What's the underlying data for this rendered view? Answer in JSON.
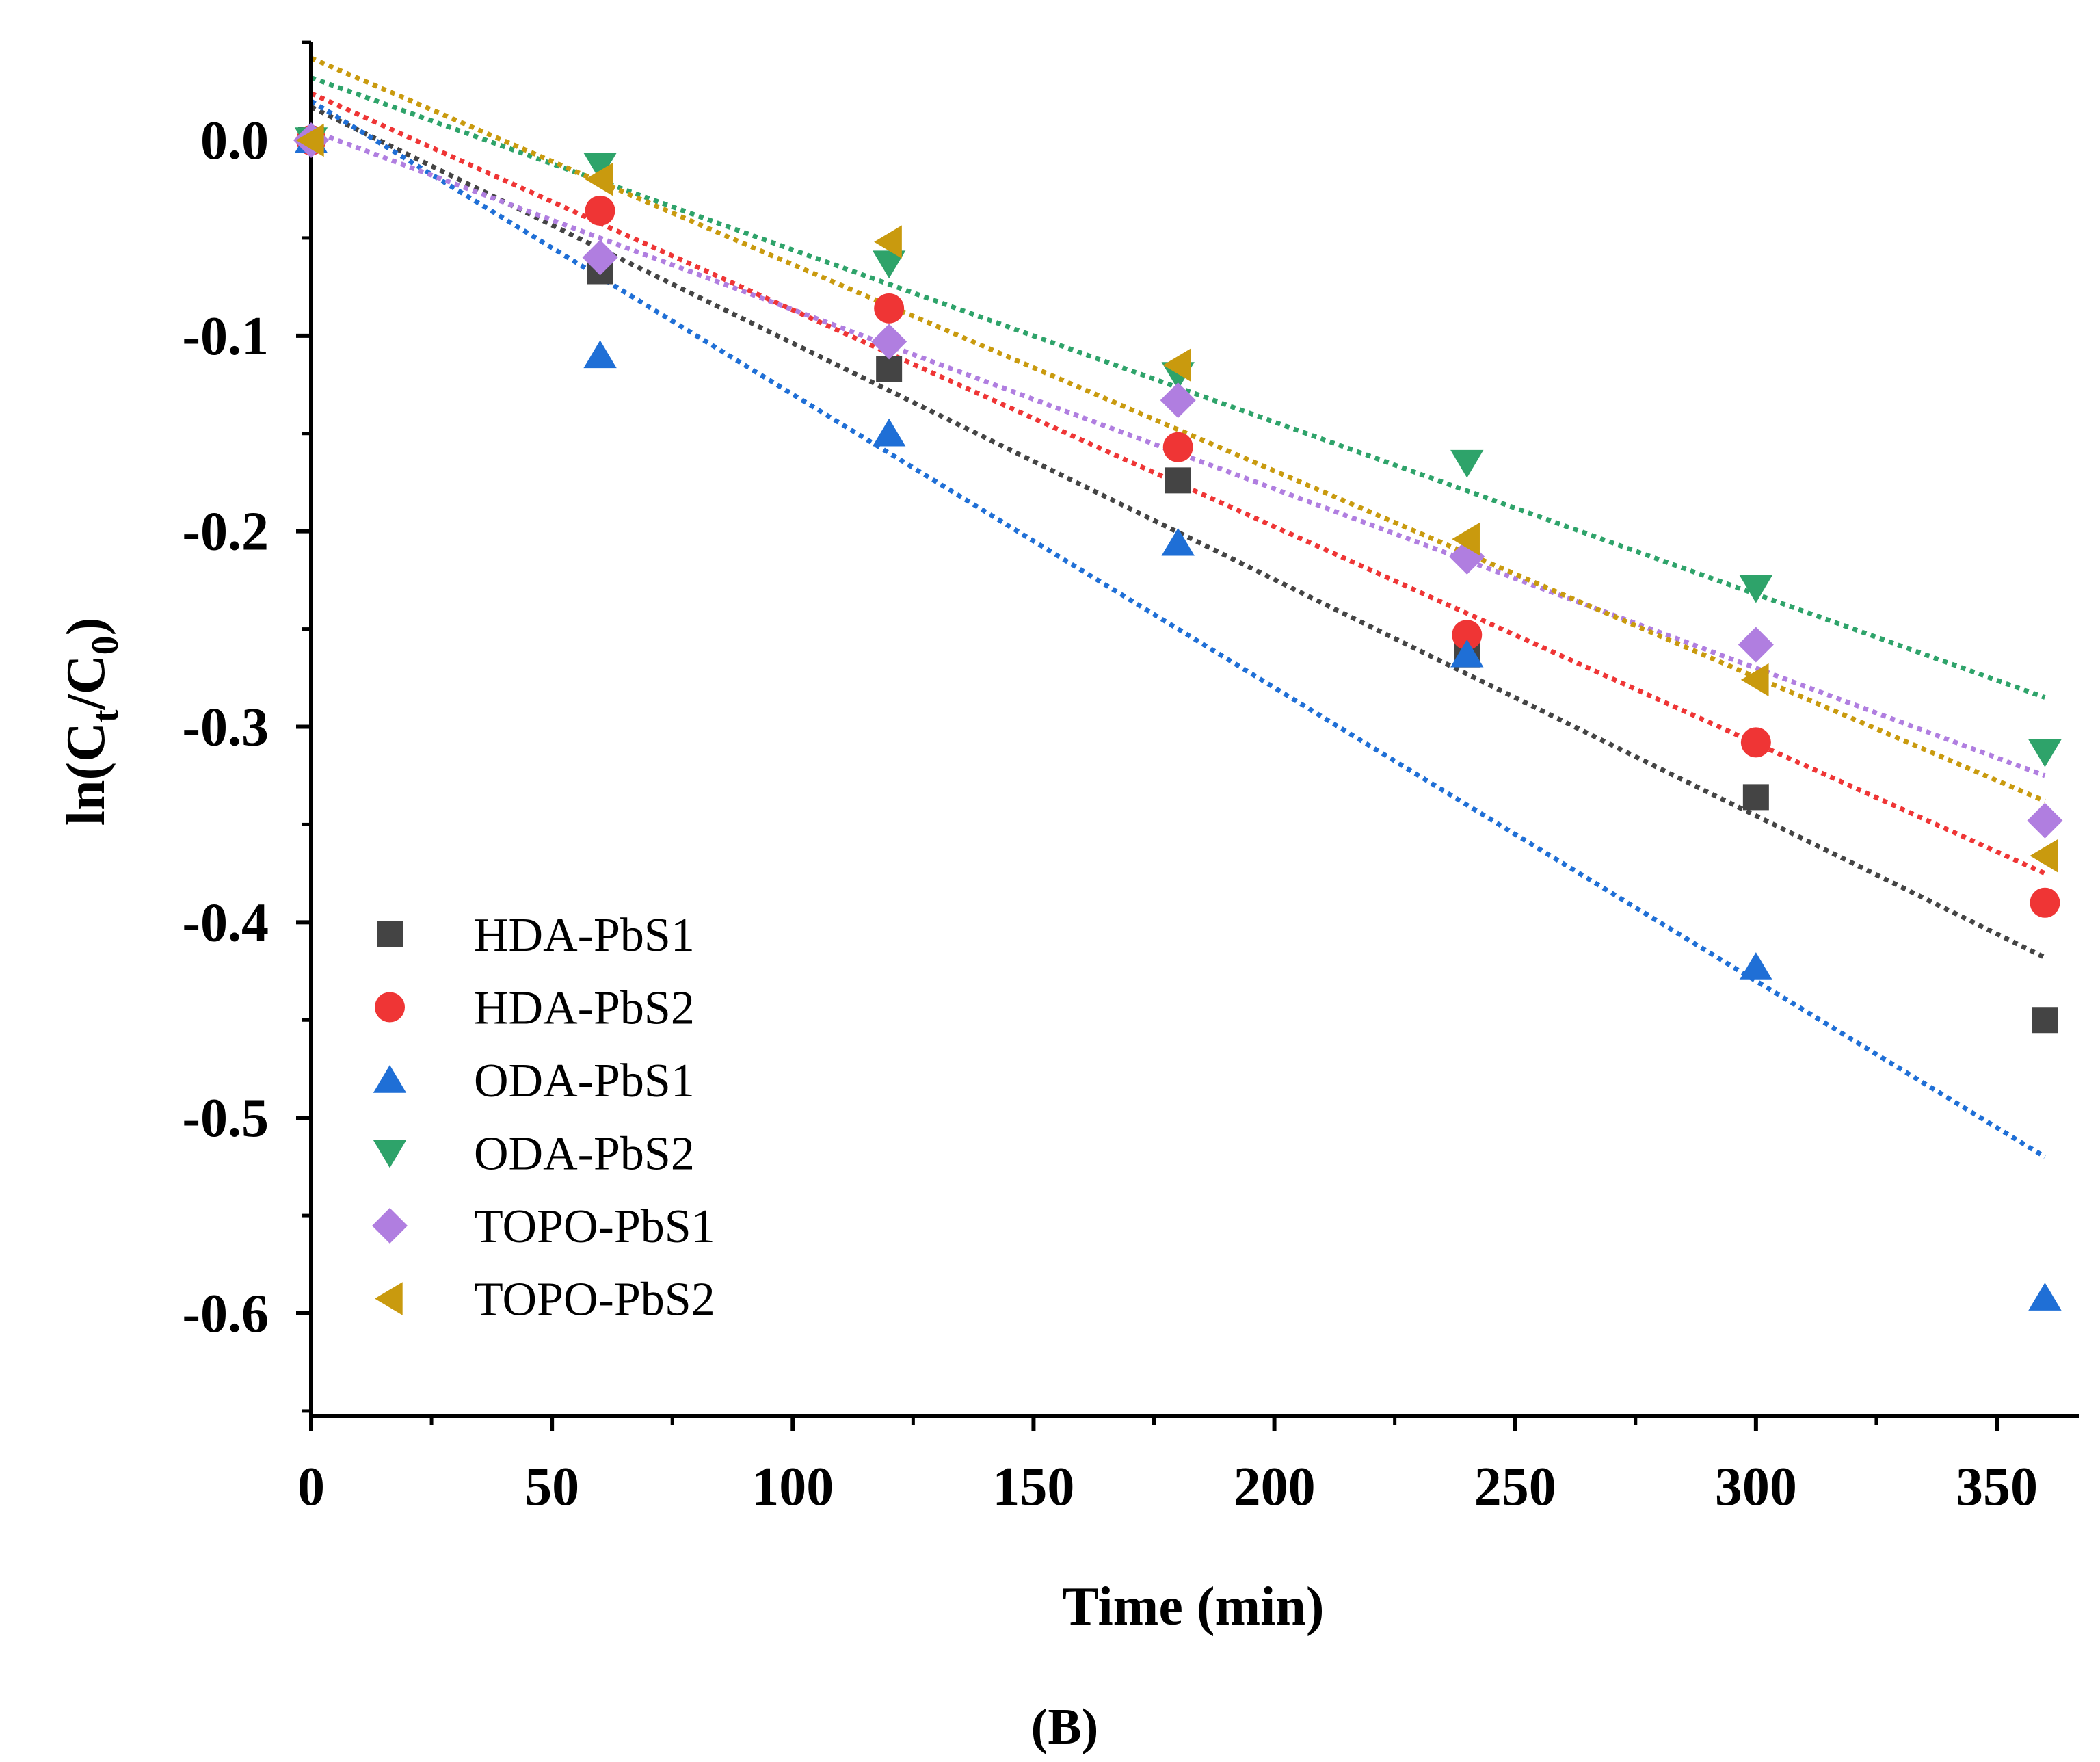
{
  "chart_data": {
    "type": "scatter",
    "title": "",
    "panel_label": "(B)",
    "xlabel": "Time (min)",
    "ylabel": {
      "base": "ln(C",
      "sub1": "t",
      "mid": "/C",
      "sub2": "0",
      "end": ")"
    },
    "xlim": [
      0,
      380
    ],
    "ylim": [
      -0.65,
      0.05
    ],
    "x_ticks": [
      0,
      50,
      100,
      150,
      200,
      250,
      300,
      350
    ],
    "x_tick_labels": [
      "0",
      "50",
      "100",
      "150",
      "200",
      "250",
      "300",
      "350"
    ],
    "y_ticks": [
      0.0,
      -0.1,
      -0.2,
      -0.3,
      -0.4,
      -0.5,
      -0.6
    ],
    "y_tick_labels": [
      "0.0",
      "-0.1",
      "-0.2",
      "-0.3",
      "-0.4",
      "-0.5",
      "-0.6"
    ],
    "x_minor_step": 25,
    "y_minor_step": 0.05,
    "grid": false,
    "legend_position": "bottom-left",
    "x": [
      0,
      60,
      120,
      180,
      240,
      300,
      360
    ],
    "series": [
      {
        "name": "HDA-PbS1",
        "marker": "square",
        "color": "#444444",
        "values": [
          0.0,
          -0.067,
          -0.117,
          -0.174,
          -0.263,
          -0.336,
          -0.45
        ],
        "fit": {
          "x0": 0,
          "y0": 0.017,
          "x1": 360,
          "y1": -0.418
        }
      },
      {
        "name": "HDA-PbS2",
        "marker": "circle",
        "color": "#ef3535",
        "values": [
          0.0,
          -0.036,
          -0.086,
          -0.157,
          -0.253,
          -0.308,
          -0.39
        ],
        "fit": {
          "x0": 0,
          "y0": 0.024,
          "x1": 360,
          "y1": -0.375
        }
      },
      {
        "name": "ODA-PbS1",
        "marker": "triangle-up",
        "color": "#1f6fd6",
        "values": [
          0.0,
          -0.11,
          -0.15,
          -0.206,
          -0.263,
          -0.423,
          -0.592
        ],
        "fit": {
          "x0": 0,
          "y0": 0.02,
          "x1": 360,
          "y1": -0.52
        }
      },
      {
        "name": "ODA-PbS2",
        "marker": "triangle-down",
        "color": "#2ea36a",
        "values": [
          0.0,
          -0.013,
          -0.063,
          -0.12,
          -0.165,
          -0.229,
          -0.313
        ],
        "fit": {
          "x0": 0,
          "y0": 0.032,
          "x1": 360,
          "y1": -0.285
        }
      },
      {
        "name": "TOPO-PbS1",
        "marker": "diamond",
        "color": "#b07ee0",
        "values": [
          0.0,
          -0.06,
          -0.103,
          -0.133,
          -0.213,
          -0.258,
          -0.348
        ],
        "fit": {
          "x0": 0,
          "y0": 0.005,
          "x1": 360,
          "y1": -0.325
        }
      },
      {
        "name": "TOPO-PbS2",
        "marker": "triangle-left",
        "color": "#c99a0e",
        "values": [
          0.0,
          -0.02,
          -0.052,
          -0.115,
          -0.204,
          -0.276,
          -0.366
        ],
        "fit": {
          "x0": 0,
          "y0": 0.042,
          "x1": 360,
          "y1": -0.338
        }
      }
    ]
  }
}
